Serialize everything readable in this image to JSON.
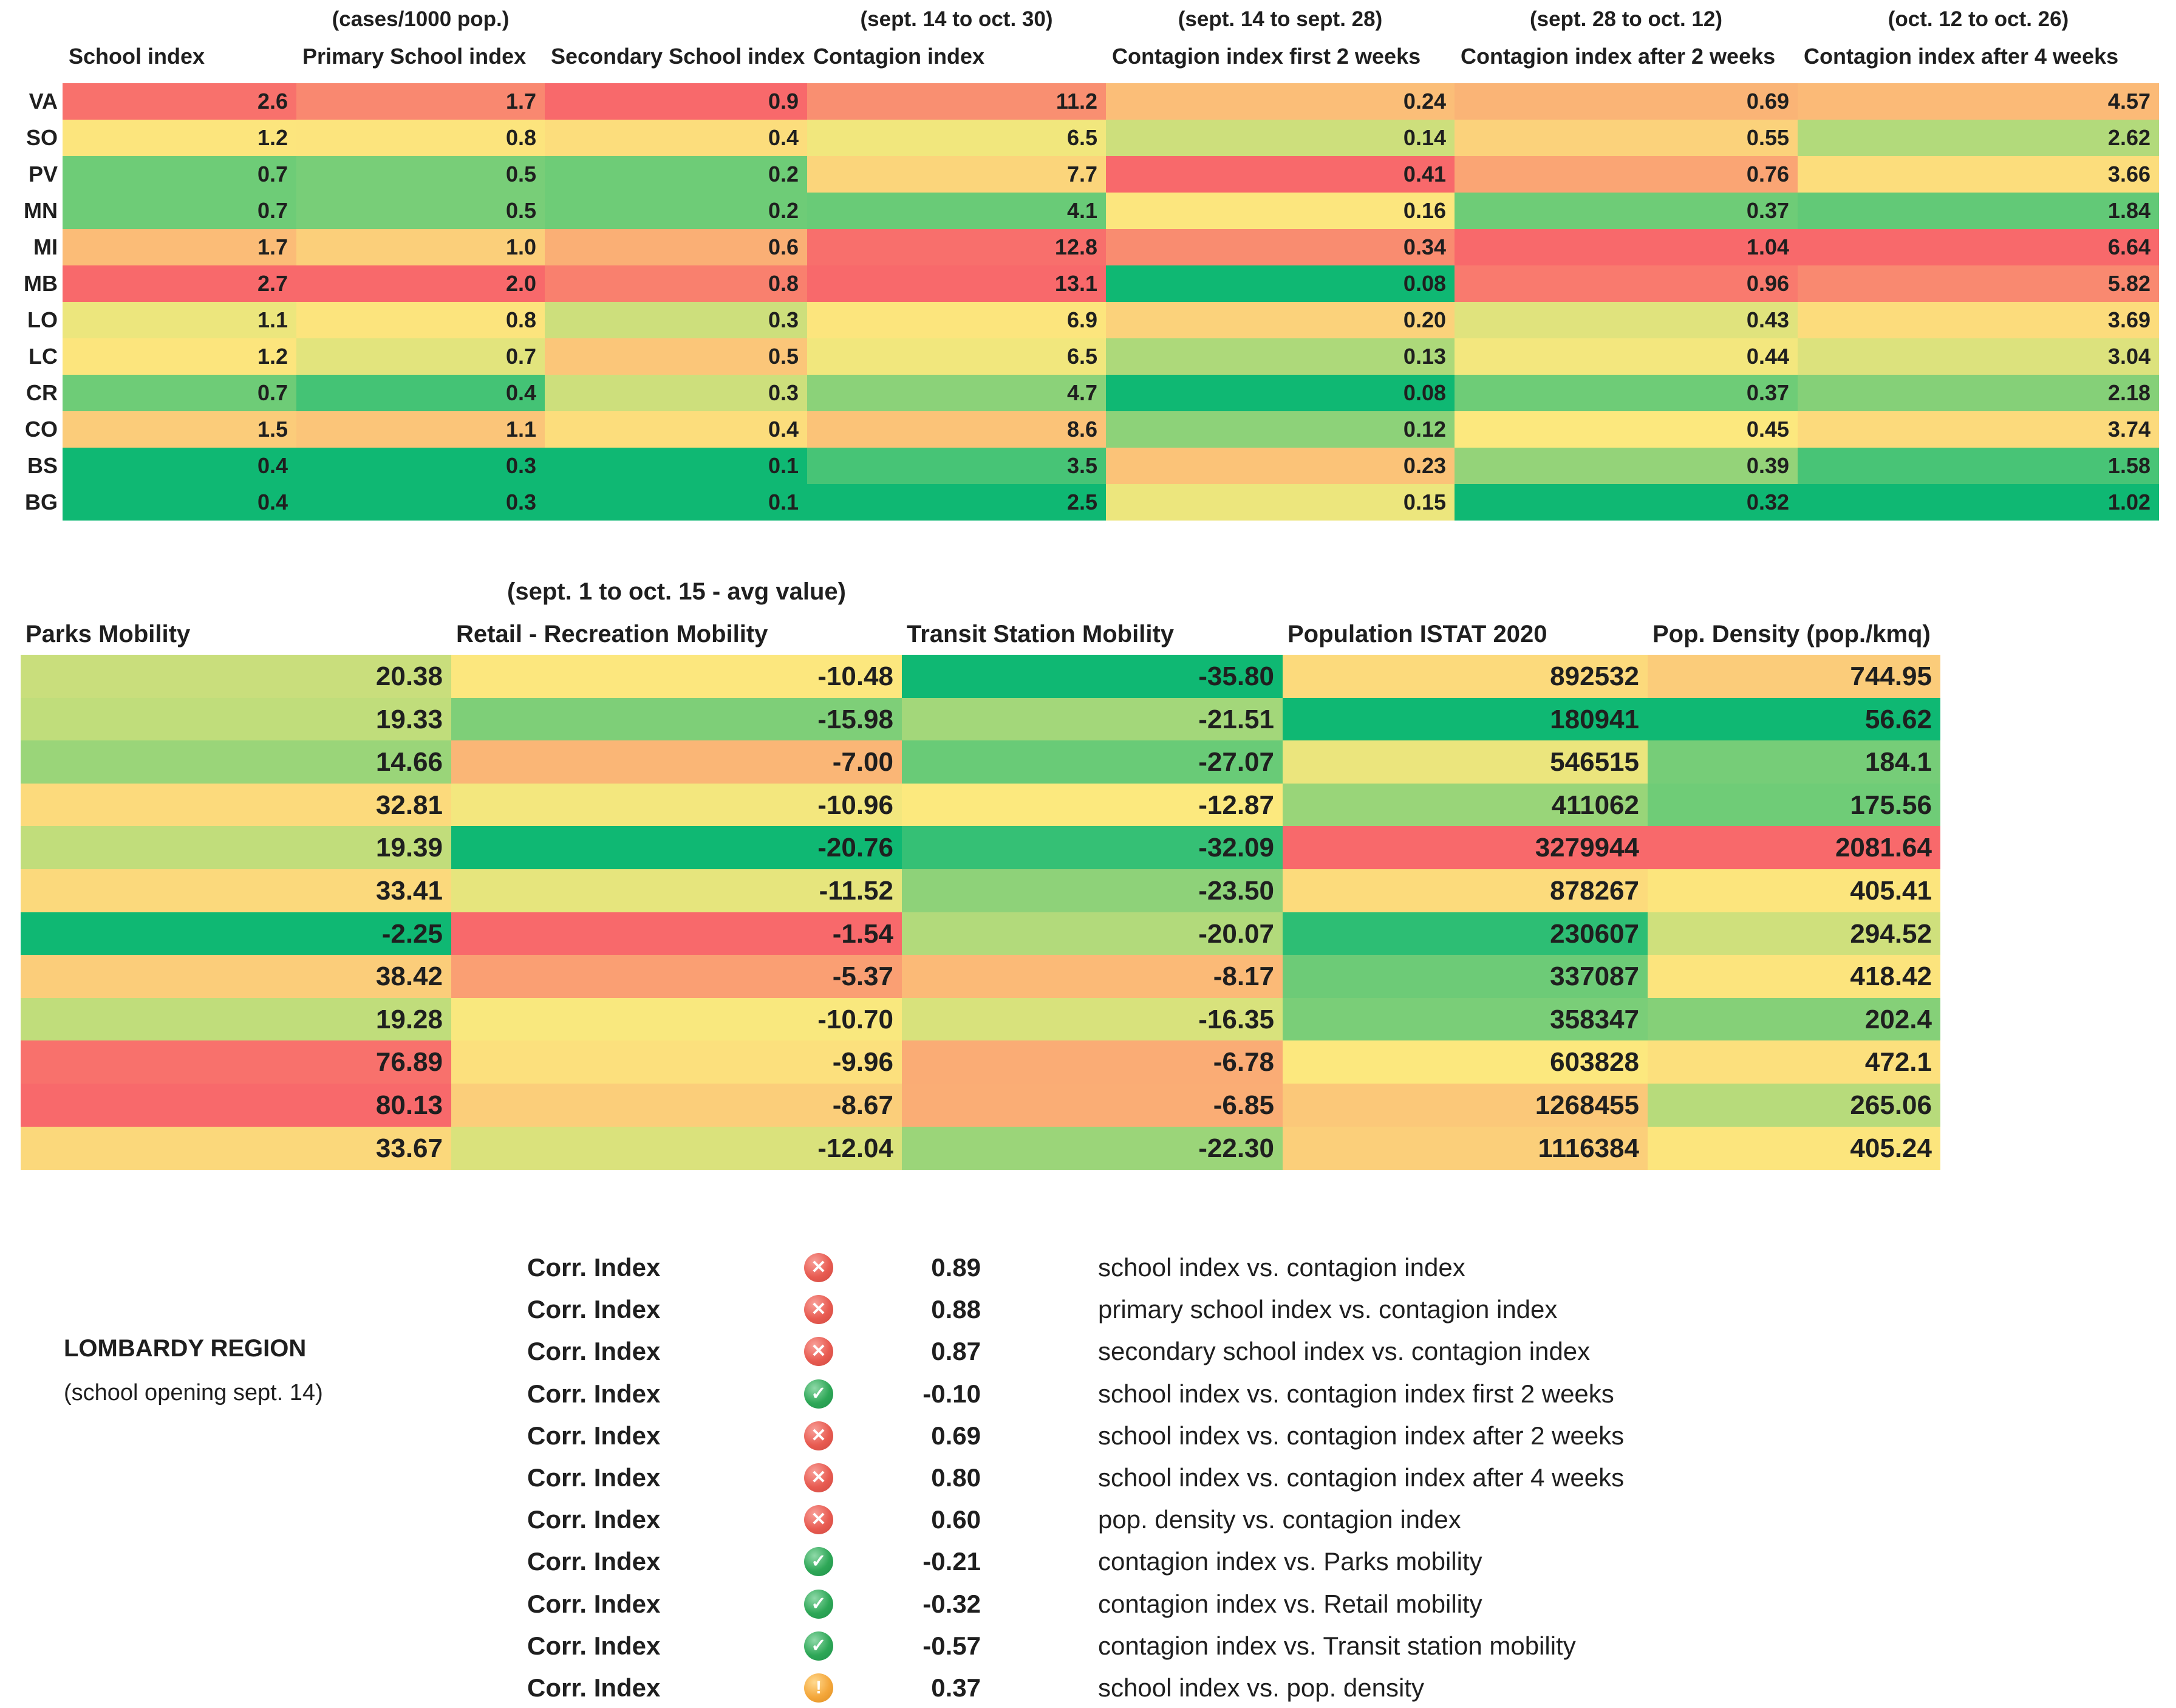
{
  "region_block": {
    "title": "LOMBARDY REGION",
    "subtitle": "(school opening sept. 14)"
  },
  "colors": {
    "scale_min_green": "#0FB873",
    "scale_mid_yellow": "#FCE97E",
    "scale_max_red": "#F8696B",
    "icon_bad": "#E85B51",
    "icon_good": "#2EA757",
    "icon_warn": "#F4A73B",
    "text": "#1F1F1F",
    "background": "#FFFFFF"
  },
  "chart_data": [
    {
      "type": "heatmap",
      "name": "school-index-vs-contagion-index-by-province",
      "row_labels": [
        "VA",
        "SO",
        "PV",
        "MN",
        "MI",
        "MB",
        "LO",
        "LC",
        "CR",
        "CO",
        "BS",
        "BG"
      ],
      "columns": [
        {
          "label": "School index",
          "unit": "",
          "decimals": 1,
          "values": [
            2.6,
            1.2,
            0.7,
            0.7,
            1.7,
            2.7,
            1.1,
            1.2,
            0.7,
            1.5,
            0.4,
            0.4
          ]
        },
        {
          "label": "Primary School index",
          "unit": "(cases/1000 pop.)",
          "decimals": 1,
          "values": [
            1.7,
            0.8,
            0.5,
            0.5,
            1.0,
            2.0,
            0.8,
            0.7,
            0.4,
            1.1,
            0.3,
            0.3
          ]
        },
        {
          "label": "Secondary School index",
          "unit": "",
          "decimals": 1,
          "values": [
            0.9,
            0.4,
            0.2,
            0.2,
            0.6,
            0.8,
            0.3,
            0.5,
            0.3,
            0.4,
            0.1,
            0.1
          ]
        },
        {
          "label": "Contagion index",
          "unit": "(sept. 14 to oct. 30)",
          "decimals": 1,
          "values": [
            11.2,
            6.5,
            7.7,
            4.1,
            12.8,
            13.1,
            6.9,
            6.5,
            4.7,
            8.6,
            3.5,
            2.5
          ]
        },
        {
          "label": "Contagion index first 2 weeks",
          "unit": "(sept. 14 to sept. 28)",
          "decimals": 2,
          "values": [
            0.24,
            0.14,
            0.41,
            0.16,
            0.34,
            0.08,
            0.2,
            0.13,
            0.08,
            0.12,
            0.23,
            0.15
          ]
        },
        {
          "label": "Contagion index after 2 weeks",
          "unit": "(sept. 28 to oct. 12)",
          "decimals": 2,
          "values": [
            0.69,
            0.55,
            0.76,
            0.37,
            1.04,
            0.96,
            0.43,
            0.44,
            0.37,
            0.45,
            0.39,
            0.32
          ]
        },
        {
          "label": "Contagion index after 4 weeks",
          "unit": "(oct. 12 to oct. 26)",
          "decimals": 2,
          "values": [
            4.57,
            2.62,
            3.66,
            1.84,
            6.64,
            5.82,
            3.69,
            3.04,
            2.18,
            3.74,
            1.58,
            1.02
          ]
        }
      ]
    },
    {
      "type": "heatmap",
      "name": "mobility-and-population-by-province",
      "columns": [
        {
          "label": "Parks Mobility",
          "unit": "",
          "decimals": 2,
          "values": [
            20.38,
            19.33,
            14.66,
            32.81,
            19.39,
            33.41,
            -2.25,
            38.42,
            19.28,
            76.89,
            80.13,
            33.67
          ]
        },
        {
          "label": "Retail - Recreation Mobility",
          "unit": "(sept. 1 to  oct. 15 - avg value)",
          "decimals": 2,
          "values": [
            -10.48,
            -15.98,
            -7.0,
            -10.96,
            -20.76,
            -11.52,
            -1.54,
            -5.37,
            -10.7,
            -9.96,
            -8.67,
            -12.04
          ]
        },
        {
          "label": "Transit Station Mobility",
          "unit": "",
          "decimals": 2,
          "scale": {
            "min": -35.8,
            "mid": -12.87,
            "max": 0
          },
          "values": [
            -35.8,
            -21.51,
            -27.07,
            -12.87,
            -32.09,
            -23.5,
            -20.07,
            -8.17,
            -16.35,
            -6.78,
            -6.85,
            -22.3
          ]
        },
        {
          "label": "Population ISTAT 2020",
          "unit": "",
          "decimals": 0,
          "values": [
            892532,
            180941,
            546515,
            411062,
            3279944,
            878267,
            230607,
            337087,
            358347,
            603828,
            1268455,
            1116384
          ]
        },
        {
          "label": "Pop. Density (pop./kmq)",
          "unit": "",
          "decimals": null,
          "values": [
            744.95,
            56.62,
            184.1,
            175.56,
            2081.64,
            405.41,
            294.52,
            418.42,
            202.4,
            472.1,
            265.06,
            405.24
          ]
        }
      ]
    },
    {
      "type": "table",
      "name": "correlation-index-list",
      "rows": [
        {
          "label": "Corr. Index",
          "icon": "bad",
          "value": "0.89",
          "description": "school index vs. contagion index"
        },
        {
          "label": "Corr. Index",
          "icon": "bad",
          "value": "0.88",
          "description": "primary school index vs. contagion index"
        },
        {
          "label": "Corr. Index",
          "icon": "bad",
          "value": "0.87",
          "description": "secondary school index vs. contagion index"
        },
        {
          "label": "Corr. Index",
          "icon": "good",
          "value": "-0.10",
          "description": "school index vs. contagion index first 2 weeks"
        },
        {
          "label": "Corr. Index",
          "icon": "bad",
          "value": "0.69",
          "description": "school index vs. contagion index after 2 weeks"
        },
        {
          "label": "Corr. Index",
          "icon": "bad",
          "value": "0.80",
          "description": "school index vs. contagion index after 4 weeks"
        },
        {
          "label": "Corr. Index",
          "icon": "bad",
          "value": "0.60",
          "description": "pop. density vs. contagion index"
        },
        {
          "label": "Corr. Index",
          "icon": "good",
          "value": "-0.21",
          "description": "contagion index vs. Parks mobility"
        },
        {
          "label": "Corr. Index",
          "icon": "good",
          "value": "-0.32",
          "description": "contagion index vs. Retail mobility"
        },
        {
          "label": "Corr. Index",
          "icon": "good",
          "value": "-0.57",
          "description": "contagion index vs. Transit station mobility"
        },
        {
          "label": "Corr. Index",
          "icon": "warn",
          "value": "0.37",
          "description": "school index vs. pop. density"
        }
      ]
    }
  ]
}
